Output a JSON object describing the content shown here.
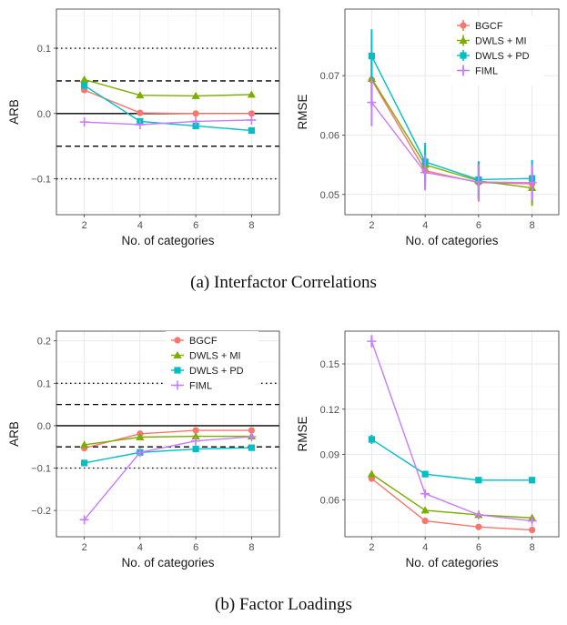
{
  "captions": {
    "a": "(a) Interfactor Correlations",
    "b": "(b) Factor Loadings"
  },
  "series_colors": {
    "BGCF": "#F8766D",
    "DWLS + MI": "#7CAE00",
    "DWLS + PD": "#00BFC4",
    "FIML": "#C77CFF"
  },
  "chart_data": [
    {
      "id": "ic-arb",
      "type": "line",
      "xlabel": "No. of categories",
      "ylabel": "ARB",
      "x": [
        2,
        4,
        6,
        8
      ],
      "xlim": [
        1,
        9
      ],
      "ylim": [
        -0.155,
        0.16
      ],
      "yticks": [
        -0.1,
        0.0,
        0.1
      ],
      "ytick_labels": [
        "−0.1",
        "0.0",
        "0.1"
      ],
      "hlines": [
        {
          "y": 0.0,
          "style": "solid"
        },
        {
          "y": 0.05,
          "style": "dashed"
        },
        {
          "y": -0.05,
          "style": "dashed"
        },
        {
          "y": 0.1,
          "style": "dotted"
        },
        {
          "y": -0.1,
          "style": "dotted"
        }
      ],
      "legend": null,
      "series": [
        {
          "name": "BGCF",
          "values": [
            0.036,
            0.001,
            0.0,
            0.0
          ]
        },
        {
          "name": "DWLS + MI",
          "values": [
            0.052,
            0.028,
            0.027,
            0.029
          ]
        },
        {
          "name": "DWLS + PD",
          "values": [
            0.043,
            -0.012,
            -0.019,
            -0.026
          ]
        },
        {
          "name": "FIML",
          "values": [
            -0.013,
            -0.017,
            -0.012,
            -0.01
          ]
        }
      ]
    },
    {
      "id": "ic-rmse",
      "type": "line",
      "xlabel": "No. of categories",
      "ylabel": "RMSE",
      "x": [
        2,
        4,
        6,
        8
      ],
      "xlim": [
        1,
        9
      ],
      "ylim": [
        0.0466,
        0.0812
      ],
      "yticks": [
        0.05,
        0.06,
        0.07
      ],
      "ytick_labels": [
        "0.05",
        "0.06",
        "0.07"
      ],
      "hlines": [],
      "legend": "top-right",
      "series": [
        {
          "name": "BGCF",
          "values": [
            0.0693,
            0.054,
            0.052,
            0.0518
          ],
          "err": [
            0.0045,
            0.003,
            0.0032,
            0.0031
          ]
        },
        {
          "name": "DWLS + MI",
          "values": [
            0.0695,
            0.055,
            0.0523,
            0.0511
          ],
          "err": [
            0.0045,
            0.003,
            0.003,
            0.003
          ]
        },
        {
          "name": "DWLS + PD",
          "values": [
            0.0733,
            0.0555,
            0.0525,
            0.0527
          ],
          "err": [
            0.0045,
            0.0032,
            0.0031,
            0.0031
          ]
        },
        {
          "name": "FIML",
          "values": [
            0.0655,
            0.0537,
            0.0521,
            0.052
          ],
          "err": [
            0.004,
            0.003,
            0.003,
            0.003
          ]
        }
      ]
    },
    {
      "id": "fl-arb",
      "type": "line",
      "xlabel": "No. of categories",
      "ylabel": "ARB",
      "x": [
        2,
        4,
        6,
        8
      ],
      "xlim": [
        1,
        9
      ],
      "ylim": [
        -0.262,
        0.223
      ],
      "yticks": [
        -0.2,
        -0.1,
        0.0,
        0.1,
        0.2
      ],
      "ytick_labels": [
        "−0.2",
        "−0.1",
        "0.0",
        "0.1",
        "0.2"
      ],
      "hlines": [
        {
          "y": 0.0,
          "style": "solid"
        },
        {
          "y": 0.05,
          "style": "dashed"
        },
        {
          "y": -0.05,
          "style": "dashed"
        },
        {
          "y": 0.1,
          "style": "dotted"
        },
        {
          "y": -0.1,
          "style": "dotted"
        }
      ],
      "legend": "top-right",
      "series": [
        {
          "name": "BGCF",
          "values": [
            -0.053,
            -0.019,
            -0.011,
            -0.011
          ]
        },
        {
          "name": "DWLS + MI",
          "values": [
            -0.045,
            -0.027,
            -0.025,
            -0.025
          ]
        },
        {
          "name": "DWLS + PD",
          "values": [
            -0.088,
            -0.063,
            -0.055,
            -0.052
          ]
        },
        {
          "name": "FIML",
          "values": [
            -0.222,
            -0.063,
            -0.036,
            -0.026
          ]
        }
      ]
    },
    {
      "id": "fl-rmse",
      "type": "line",
      "xlabel": "No. of categories",
      "ylabel": "RMSE",
      "x": [
        2,
        4,
        6,
        8
      ],
      "xlim": [
        1,
        9
      ],
      "ylim": [
        0.0355,
        0.1717
      ],
      "yticks": [
        0.06,
        0.09,
        0.12,
        0.15
      ],
      "ytick_labels": [
        "0.06",
        "0.09",
        "0.12",
        "0.15"
      ],
      "hlines": [],
      "legend": null,
      "series": [
        {
          "name": "BGCF",
          "values": [
            0.074,
            0.046,
            0.042,
            0.04
          ],
          "err": [
            0.002,
            0.0015,
            0.0015,
            0.0015
          ]
        },
        {
          "name": "DWLS + MI",
          "values": [
            0.077,
            0.053,
            0.05,
            0.048
          ],
          "err": [
            0.002,
            0.0015,
            0.0015,
            0.0015
          ]
        },
        {
          "name": "DWLS + PD",
          "values": [
            0.1,
            0.077,
            0.073,
            0.073
          ],
          "err": [
            0.003,
            0.0015,
            0.0015,
            0.0015
          ]
        },
        {
          "name": "FIML",
          "values": [
            0.165,
            0.064,
            0.05,
            0.046
          ],
          "err": [
            0.004,
            0.002,
            0.0015,
            0.0015
          ]
        }
      ]
    }
  ]
}
